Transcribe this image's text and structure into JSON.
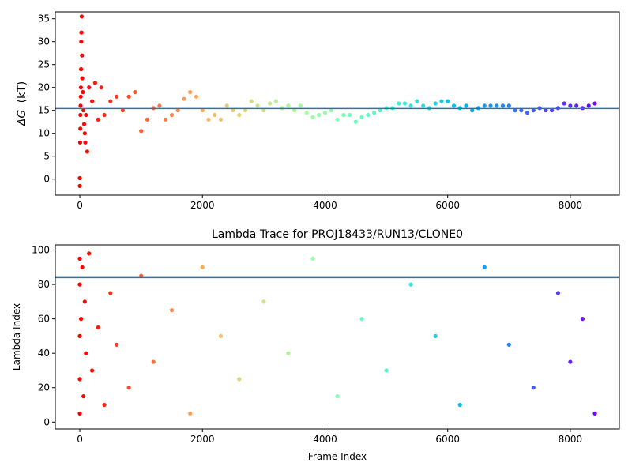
{
  "chart_data": [
    {
      "type": "scatter",
      "title": "",
      "xlabel": "",
      "ylabel": "ΔG (kT)",
      "ylabel_symbol": "ΔG",
      "ylabel_unit": "(kT)",
      "xlim": [
        -400,
        8800
      ],
      "ylim": [
        -3.5,
        36.5
      ],
      "xticks": [
        0,
        2000,
        4000,
        6000,
        8000
      ],
      "xtick_labels": [
        "0",
        "2000",
        "4000",
        "6000",
        "8000"
      ],
      "yticks": [
        0,
        5,
        10,
        15,
        20,
        25,
        30,
        35
      ],
      "ytick_labels": [
        "0",
        "5",
        "10",
        "15",
        "20",
        "25",
        "30",
        "35"
      ],
      "hline": {
        "y": 15.4,
        "color": "#1f77b4"
      },
      "colormap": "rainbow (red at early frames → violet at late frames)",
      "series": [
        {
          "values": [
            {
              "x": 0,
              "y": -1.5
            },
            {
              "x": 0,
              "y": 0.2
            },
            {
              "x": 5,
              "y": 8
            },
            {
              "x": 8,
              "y": 11
            },
            {
              "x": 10,
              "y": 14
            },
            {
              "x": 12,
              "y": 16
            },
            {
              "x": 15,
              "y": 18
            },
            {
              "x": 18,
              "y": 20
            },
            {
              "x": 20,
              "y": 24
            },
            {
              "x": 22,
              "y": 30
            },
            {
              "x": 25,
              "y": 32
            },
            {
              "x": 30,
              "y": 35.5
            },
            {
              "x": 35,
              "y": 27
            },
            {
              "x": 40,
              "y": 22
            },
            {
              "x": 50,
              "y": 19
            },
            {
              "x": 60,
              "y": 15
            },
            {
              "x": 70,
              "y": 12
            },
            {
              "x": 80,
              "y": 10
            },
            {
              "x": 90,
              "y": 8
            },
            {
              "x": 100,
              "y": 14
            },
            {
              "x": 120,
              "y": 6
            },
            {
              "x": 150,
              "y": 20
            },
            {
              "x": 200,
              "y": 17
            },
            {
              "x": 250,
              "y": 21
            },
            {
              "x": 300,
              "y": 13
            },
            {
              "x": 350,
              "y": 20
            },
            {
              "x": 400,
              "y": 14
            },
            {
              "x": 500,
              "y": 17
            },
            {
              "x": 600,
              "y": 18
            },
            {
              "x": 700,
              "y": 15
            },
            {
              "x": 800,
              "y": 18
            },
            {
              "x": 900,
              "y": 19
            },
            {
              "x": 1000,
              "y": 10.5
            },
            {
              "x": 1100,
              "y": 13
            },
            {
              "x": 1200,
              "y": 15.5
            },
            {
              "x": 1300,
              "y": 16
            },
            {
              "x": 1400,
              "y": 13
            },
            {
              "x": 1500,
              "y": 14
            },
            {
              "x": 1600,
              "y": 15
            },
            {
              "x": 1700,
              "y": 17.5
            },
            {
              "x": 1800,
              "y": 19
            },
            {
              "x": 1900,
              "y": 18
            },
            {
              "x": 2000,
              "y": 15
            },
            {
              "x": 2100,
              "y": 13
            },
            {
              "x": 2200,
              "y": 14
            },
            {
              "x": 2300,
              "y": 13
            },
            {
              "x": 2400,
              "y": 16
            },
            {
              "x": 2500,
              "y": 15
            },
            {
              "x": 2600,
              "y": 14
            },
            {
              "x": 2700,
              "y": 15
            },
            {
              "x": 2800,
              "y": 17
            },
            {
              "x": 2900,
              "y": 16
            },
            {
              "x": 3000,
              "y": 15
            },
            {
              "x": 3100,
              "y": 16.5
            },
            {
              "x": 3200,
              "y": 17
            },
            {
              "x": 3300,
              "y": 15.5
            },
            {
              "x": 3400,
              "y": 16
            },
            {
              "x": 3500,
              "y": 15
            },
            {
              "x": 3600,
              "y": 16
            },
            {
              "x": 3700,
              "y": 14.5
            },
            {
              "x": 3800,
              "y": 13.5
            },
            {
              "x": 3900,
              "y": 14
            },
            {
              "x": 4000,
              "y": 14.5
            },
            {
              "x": 4100,
              "y": 15
            },
            {
              "x": 4200,
              "y": 13
            },
            {
              "x": 4300,
              "y": 14
            },
            {
              "x": 4400,
              "y": 14
            },
            {
              "x": 4500,
              "y": 12.5
            },
            {
              "x": 4600,
              "y": 13.5
            },
            {
              "x": 4700,
              "y": 14
            },
            {
              "x": 4800,
              "y": 14.5
            },
            {
              "x": 4900,
              "y": 15
            },
            {
              "x": 5000,
              "y": 15.5
            },
            {
              "x": 5100,
              "y": 15.5
            },
            {
              "x": 5200,
              "y": 16.5
            },
            {
              "x": 5300,
              "y": 16.5
            },
            {
              "x": 5400,
              "y": 16
            },
            {
              "x": 5500,
              "y": 17
            },
            {
              "x": 5600,
              "y": 16
            },
            {
              "x": 5700,
              "y": 15.5
            },
            {
              "x": 5800,
              "y": 16.5
            },
            {
              "x": 5900,
              "y": 17
            },
            {
              "x": 6000,
              "y": 17
            },
            {
              "x": 6100,
              "y": 16
            },
            {
              "x": 6200,
              "y": 15.5
            },
            {
              "x": 6300,
              "y": 16
            },
            {
              "x": 6400,
              "y": 15
            },
            {
              "x": 6500,
              "y": 15.5
            },
            {
              "x": 6600,
              "y": 16
            },
            {
              "x": 6700,
              "y": 16
            },
            {
              "x": 6800,
              "y": 16
            },
            {
              "x": 6900,
              "y": 16
            },
            {
              "x": 7000,
              "y": 16
            },
            {
              "x": 7100,
              "y": 15
            },
            {
              "x": 7200,
              "y": 15
            },
            {
              "x": 7300,
              "y": 14.5
            },
            {
              "x": 7400,
              "y": 15
            },
            {
              "x": 7500,
              "y": 15.5
            },
            {
              "x": 7600,
              "y": 15
            },
            {
              "x": 7700,
              "y": 15
            },
            {
              "x": 7800,
              "y": 15.5
            },
            {
              "x": 7900,
              "y": 16.5
            },
            {
              "x": 8000,
              "y": 16
            },
            {
              "x": 8100,
              "y": 16
            },
            {
              "x": 8200,
              "y": 15.5
            },
            {
              "x": 8300,
              "y": 16
            },
            {
              "x": 8400,
              "y": 16.5
            }
          ]
        }
      ]
    },
    {
      "type": "scatter",
      "title": "Lambda Trace for PROJ18433/RUN13/CLONE0",
      "xlabel": "Frame Index",
      "ylabel": "Lambda Index",
      "xlim": [
        -400,
        8800
      ],
      "ylim": [
        -4,
        103
      ],
      "xticks": [
        0,
        2000,
        4000,
        6000,
        8000
      ],
      "xtick_labels": [
        "0",
        "2000",
        "4000",
        "6000",
        "8000"
      ],
      "yticks": [
        0,
        20,
        40,
        60,
        80,
        100
      ],
      "ytick_labels": [
        "0",
        "20",
        "40",
        "60",
        "80",
        "100"
      ],
      "hline": {
        "y": 84,
        "color": "#1f77b4"
      },
      "colormap": "rainbow (red at early frames → violet at late frames)",
      "series": [
        {
          "values": [
            {
              "x": 0,
              "y": 5
            },
            {
              "x": 0,
              "y": 25
            },
            {
              "x": 0,
              "y": 50
            },
            {
              "x": 0,
              "y": 80
            },
            {
              "x": 0,
              "y": 95
            },
            {
              "x": 20,
              "y": 60
            },
            {
              "x": 40,
              "y": 90
            },
            {
              "x": 60,
              "y": 15
            },
            {
              "x": 80,
              "y": 70
            },
            {
              "x": 100,
              "y": 40
            },
            {
              "x": 150,
              "y": 98
            },
            {
              "x": 200,
              "y": 30
            },
            {
              "x": 300,
              "y": 55
            },
            {
              "x": 400,
              "y": 10
            },
            {
              "x": 500,
              "y": 75
            },
            {
              "x": 600,
              "y": 45
            },
            {
              "x": 800,
              "y": 20
            },
            {
              "x": 1000,
              "y": 85
            },
            {
              "x": 1200,
              "y": 35
            },
            {
              "x": 1500,
              "y": 65
            },
            {
              "x": 1800,
              "y": 5
            },
            {
              "x": 2000,
              "y": 90
            },
            {
              "x": 2300,
              "y": 50
            },
            {
              "x": 2600,
              "y": 25
            },
            {
              "x": 3000,
              "y": 70
            },
            {
              "x": 3400,
              "y": 40
            },
            {
              "x": 3800,
              "y": 95
            },
            {
              "x": 4200,
              "y": 15
            },
            {
              "x": 4600,
              "y": 60
            },
            {
              "x": 5000,
              "y": 30
            },
            {
              "x": 5400,
              "y": 80
            },
            {
              "x": 5800,
              "y": 50
            },
            {
              "x": 6200,
              "y": 10
            },
            {
              "x": 6600,
              "y": 90
            },
            {
              "x": 7000,
              "y": 45
            },
            {
              "x": 7400,
              "y": 20
            },
            {
              "x": 7800,
              "y": 75
            },
            {
              "x": 8000,
              "y": 35
            },
            {
              "x": 8200,
              "y": 60
            },
            {
              "x": 8400,
              "y": 5
            }
          ]
        }
      ]
    }
  ]
}
